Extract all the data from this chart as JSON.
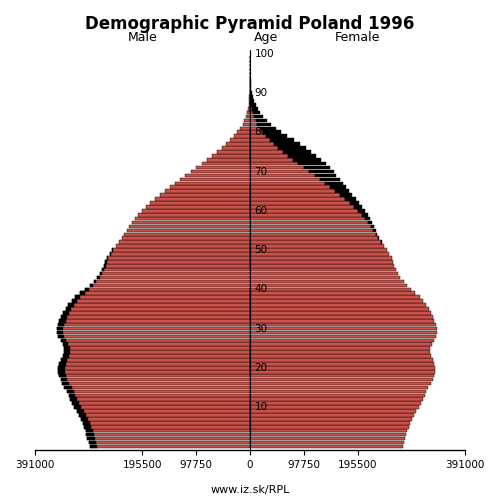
{
  "title": "Demographic Pyramid Poland 1996",
  "subtitle_male": "Male",
  "subtitle_age": "Age",
  "subtitle_female": "Female",
  "watermark": "www.iz.sk/RPL",
  "bar_color": "#C8524A",
  "bar_edgecolor": "#000000",
  "bar_linewidth": 0.3,
  "excess_color": "#000000",
  "xlim": 391000,
  "ages": [
    0,
    1,
    2,
    3,
    4,
    5,
    6,
    7,
    8,
    9,
    10,
    11,
    12,
    13,
    14,
    15,
    16,
    17,
    18,
    19,
    20,
    21,
    22,
    23,
    24,
    25,
    26,
    27,
    28,
    29,
    30,
    31,
    32,
    33,
    34,
    35,
    36,
    37,
    38,
    39,
    40,
    41,
    42,
    43,
    44,
    45,
    46,
    47,
    48,
    49,
    50,
    51,
    52,
    53,
    54,
    55,
    56,
    57,
    58,
    59,
    60,
    61,
    62,
    63,
    64,
    65,
    66,
    67,
    68,
    69,
    70,
    71,
    72,
    73,
    74,
    75,
    76,
    77,
    78,
    79,
    80,
    81,
    82,
    83,
    84,
    85,
    86,
    87,
    88,
    89,
    90,
    91,
    92,
    93,
    94,
    95,
    96,
    97,
    98,
    99
  ],
  "male": [
    291000,
    293000,
    296000,
    297000,
    298000,
    301000,
    304000,
    307000,
    310000,
    314000,
    319000,
    323000,
    326000,
    329000,
    333000,
    337000,
    341000,
    344000,
    346000,
    348000,
    348000,
    346000,
    343000,
    340000,
    338000,
    338000,
    340000,
    344000,
    348000,
    351000,
    351000,
    349000,
    346000,
    343000,
    339000,
    335000,
    330000,
    324000,
    317000,
    308000,
    299000,
    291000,
    284000,
    278000,
    273000,
    269000,
    266000,
    263000,
    260000,
    255000,
    250000,
    244000,
    238000,
    232000,
    228000,
    224000,
    219000,
    214000,
    209000,
    203000,
    196000,
    189000,
    181000,
    172000,
    163000,
    154000,
    146000,
    137000,
    128000,
    118000,
    108000,
    98000,
    88000,
    78000,
    69000,
    60000,
    51000,
    43000,
    36000,
    29000,
    23000,
    18000,
    13500,
    10000,
    7200,
    5100,
    3500,
    2300,
    1500,
    950,
    580,
    340,
    190,
    100,
    50,
    25,
    12,
    5,
    2,
    1
  ],
  "female": [
    278000,
    280000,
    282000,
    283000,
    285000,
    288000,
    291000,
    294000,
    297000,
    301000,
    306000,
    311000,
    314000,
    317000,
    320000,
    324000,
    328000,
    332000,
    334000,
    336000,
    336000,
    334000,
    332000,
    329000,
    327000,
    327000,
    330000,
    334000,
    337000,
    340000,
    340000,
    338000,
    335000,
    332000,
    328000,
    325000,
    320000,
    315000,
    308000,
    300000,
    292000,
    285000,
    279000,
    273000,
    268000,
    265000,
    262000,
    259000,
    257000,
    253000,
    249000,
    244000,
    239000,
    234000,
    231000,
    228000,
    225000,
    221000,
    218000,
    214000,
    209000,
    204000,
    198000,
    192000,
    185000,
    180000,
    175000,
    169000,
    163000,
    157000,
    152000,
    146000,
    138000,
    129000,
    120000,
    111000,
    101000,
    90000,
    79000,
    68000,
    57000,
    47000,
    38000,
    31000,
    24000,
    19000,
    14500,
    11000,
    8000,
    5600,
    3800,
    2500,
    1600,
    1000,
    600,
    340,
    180,
    90,
    40,
    15
  ]
}
